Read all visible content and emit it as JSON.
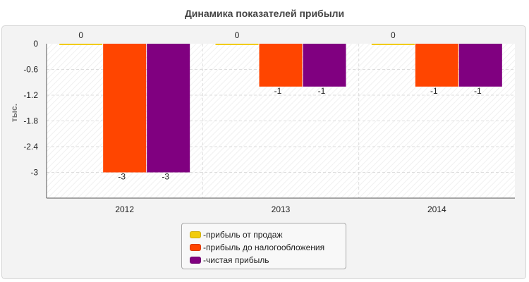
{
  "chart_data": {
    "type": "bar",
    "title": "Динамика показателей прибыли",
    "ylabel": "тыс.",
    "xlabel": "",
    "categories": [
      "2012",
      "2013",
      "2014"
    ],
    "series": [
      {
        "name": "прибыль от продаж",
        "values": [
          0,
          0,
          0
        ],
        "color": "#f2cc0c"
      },
      {
        "name": "прибыль до налогообложения",
        "values": [
          -3,
          -1,
          -1
        ],
        "color": "#ff4500"
      },
      {
        "name": "чистая прибыль",
        "values": [
          -3,
          -1,
          -1
        ],
        "color": "#800080"
      }
    ],
    "ylim": [
      -3.6,
      0
    ],
    "yticks": [
      0,
      -0.6,
      -1.2,
      -1.8,
      -2.4,
      -3
    ],
    "ytick_labels": [
      "0",
      "-0.6",
      "-1.2",
      "-1.8",
      "-2.4",
      "-3"
    ],
    "grid": true,
    "legend_position": "bottom",
    "legend_prefix": "- "
  }
}
